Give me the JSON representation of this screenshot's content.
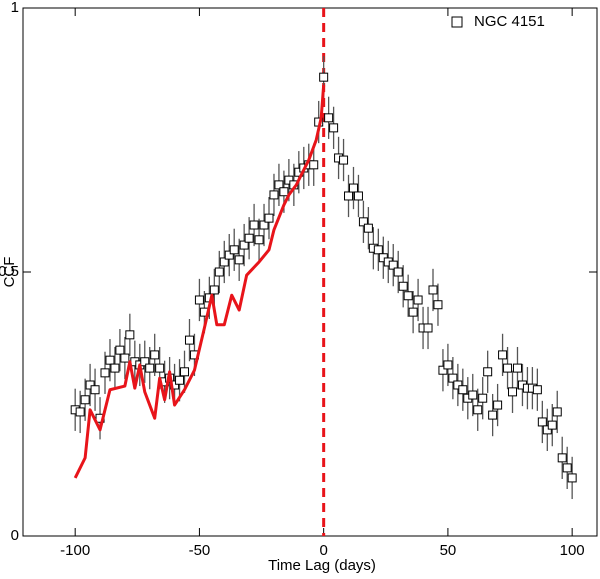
{
  "chart_data": {
    "type": "scatter",
    "xlabel": "Time Lag (days)",
    "ylabel": "CCF",
    "xlim": [
      -121,
      110
    ],
    "ylim": [
      0,
      1
    ],
    "xticks": [
      -100,
      -50,
      0,
      50,
      100
    ],
    "yticks": [
      0,
      0.5,
      1
    ],
    "legend": "top-right",
    "vline": {
      "x": 0,
      "color": "#e8141a"
    },
    "series": [
      {
        "name": "NGC 4151",
        "color": "#000000",
        "type": "scatter",
        "x": [
          -100,
          -98,
          -96,
          -94,
          -92,
          -90,
          -88,
          -86,
          -84,
          -82,
          -80,
          -78,
          -76,
          -74,
          -72,
          -70,
          -68,
          -66,
          -64,
          -62,
          -60,
          -58,
          -56,
          -54,
          -52,
          -50,
          -48,
          -46,
          -44,
          -42,
          -40,
          -38,
          -36,
          -34,
          -32,
          -30,
          -28,
          -26,
          -24,
          -22,
          -20,
          -18,
          -16,
          -14,
          -12,
          -10,
          -8,
          -6,
          -4,
          -2,
          0,
          2,
          4,
          6,
          8,
          10,
          12,
          14,
          16,
          18,
          20,
          22,
          24,
          26,
          28,
          30,
          32,
          34,
          36,
          38,
          40,
          42,
          44,
          46,
          48,
          50,
          52,
          54,
          56,
          58,
          60,
          62,
          64,
          66,
          68,
          70,
          72,
          74,
          76,
          78,
          80,
          82,
          84,
          86,
          88,
          90,
          92,
          94,
          96,
          98,
          100
        ],
        "values": [
          0.239,
          0.235,
          0.258,
          0.286,
          0.277,
          0.223,
          0.309,
          0.333,
          0.318,
          0.352,
          0.337,
          0.381,
          0.33,
          0.324,
          0.33,
          0.318,
          0.343,
          0.318,
          0.292,
          0.299,
          0.286,
          0.295,
          0.311,
          0.371,
          0.343,
          0.447,
          0.424,
          0.451,
          0.466,
          0.5,
          0.519,
          0.532,
          0.542,
          0.523,
          0.551,
          0.564,
          0.589,
          0.561,
          0.589,
          0.602,
          0.646,
          0.665,
          0.652,
          0.674,
          0.665,
          0.689,
          0.697,
          0.703,
          0.703,
          0.784,
          0.869,
          0.792,
          0.773,
          0.716,
          0.712,
          0.644,
          0.659,
          0.644,
          0.595,
          0.583,
          0.545,
          0.542,
          0.527,
          0.519,
          0.513,
          0.5,
          0.473,
          0.455,
          0.424,
          0.447,
          0.394,
          0.394,
          0.466,
          0.438,
          0.314,
          0.324,
          0.299,
          0.286,
          0.277,
          0.261,
          0.267,
          0.239,
          0.261,
          0.311,
          0.229,
          0.248,
          0.343,
          0.318,
          0.273,
          0.318,
          0.286,
          0.28,
          0.28,
          0.277,
          0.216,
          0.201,
          0.21,
          0.235,
          0.148,
          0.129,
          0.11
        ],
        "errors": [
          0.04,
          0.04,
          0.04,
          0.04,
          0.04,
          0.04,
          0.04,
          0.04,
          0.04,
          0.04,
          0.04,
          0.04,
          0.04,
          0.04,
          0.04,
          0.04,
          0.04,
          0.04,
          0.04,
          0.04,
          0.04,
          0.04,
          0.04,
          0.04,
          0.04,
          0.04,
          0.04,
          0.04,
          0.04,
          0.04,
          0.04,
          0.04,
          0.04,
          0.04,
          0.04,
          0.04,
          0.04,
          0.04,
          0.04,
          0.04,
          0.04,
          0.04,
          0.04,
          0.04,
          0.04,
          0.04,
          0.04,
          0.04,
          0.04,
          0.04,
          0.04,
          0.04,
          0.04,
          0.04,
          0.04,
          0.04,
          0.04,
          0.04,
          0.04,
          0.04,
          0.04,
          0.04,
          0.04,
          0.04,
          0.04,
          0.04,
          0.04,
          0.04,
          0.04,
          0.04,
          0.04,
          0.04,
          0.04,
          0.04,
          0.04,
          0.04,
          0.04,
          0.04,
          0.04,
          0.04,
          0.04,
          0.04,
          0.04,
          0.04,
          0.04,
          0.04,
          0.04,
          0.04,
          0.04,
          0.04,
          0.04,
          0.04,
          0.04,
          0.04,
          0.04,
          0.04,
          0.04,
          0.04,
          0.04,
          0.04,
          0.04
        ]
      },
      {
        "color": "#e8141a",
        "type": "line",
        "x": [
          -100,
          -96,
          -94,
          -90,
          -86,
          -80,
          -78,
          -76,
          -74,
          -72,
          -70,
          -68,
          -66,
          -64,
          -62,
          -60,
          -56,
          -52,
          -48,
          -45,
          -43,
          -40,
          -37,
          -34,
          -31,
          -26,
          -22,
          -20,
          -16,
          -14,
          -11,
          -9,
          -6,
          -3,
          -1,
          0
        ],
        "values": [
          0.11,
          0.148,
          0.239,
          0.201,
          0.277,
          0.284,
          0.33,
          0.28,
          0.324,
          0.273,
          0.248,
          0.223,
          0.299,
          0.258,
          0.311,
          0.248,
          0.277,
          0.314,
          0.394,
          0.456,
          0.4,
          0.4,
          0.456,
          0.428,
          0.494,
          0.519,
          0.542,
          0.58,
          0.627,
          0.646,
          0.665,
          0.684,
          0.712,
          0.75,
          0.792,
          0.854
        ]
      }
    ]
  }
}
